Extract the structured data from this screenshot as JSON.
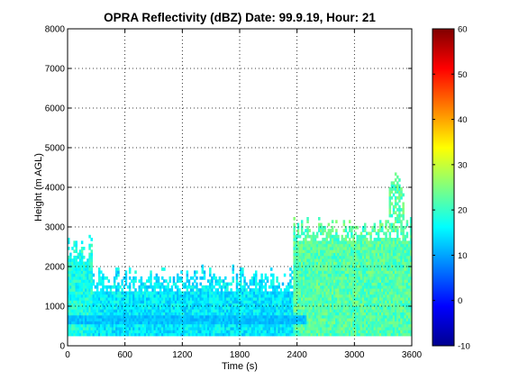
{
  "chart_data": {
    "type": "heatmap",
    "title": "OPRA Reflectivity (dBZ)  Date: 99.9.19, Hour: 21",
    "xlabel": "Time (s)",
    "ylabel": "Height (m AGL)",
    "xlim": [
      0,
      3600
    ],
    "ylim": [
      0,
      8000
    ],
    "x_ticks": [
      "0",
      "600",
      "1200",
      "1800",
      "2400",
      "3000",
      "3600"
    ],
    "y_ticks": [
      "0",
      "1000",
      "2000",
      "3000",
      "4000",
      "5000",
      "6000",
      "7000",
      "8000"
    ],
    "grid": true,
    "colormap": "jet",
    "colorbar": {
      "range": [
        -10,
        60
      ],
      "ticks": [
        "-10",
        "0",
        "10",
        "20",
        "30",
        "40",
        "50",
        "60"
      ]
    },
    "echo_profile": {
      "description_segments": [
        {
          "t_start": 0,
          "t_end": 260,
          "echo_base_m": 250,
          "echo_top_m": 2500,
          "core_dbz": 18
        },
        {
          "t_start": 260,
          "t_end": 2350,
          "echo_base_m": 250,
          "echo_top_m": 1750,
          "core_dbz": 15
        },
        {
          "t_start": 2350,
          "t_end": 3600,
          "echo_base_m": 250,
          "echo_top_m": 3000,
          "core_dbz": 22
        }
      ],
      "low_layer_m": [
        550,
        750
      ],
      "low_layer_dbz": 12,
      "plume_tops": [
        {
          "t": 3430,
          "top_m": 4400
        }
      ]
    }
  }
}
